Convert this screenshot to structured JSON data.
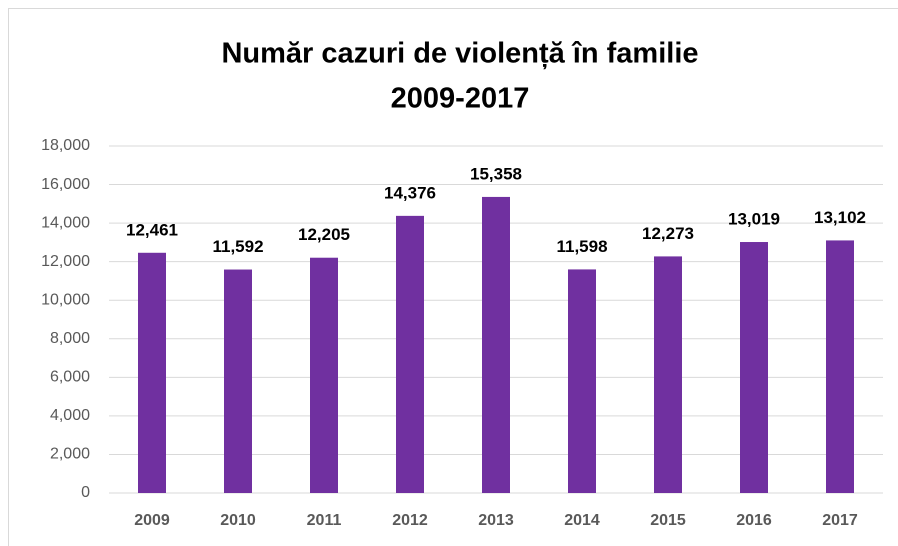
{
  "chart_data": {
    "type": "bar",
    "title": "Număr cazuri de violență în familie",
    "subtitle": "2009-2017",
    "categories": [
      "2009",
      "2010",
      "2011",
      "2012",
      "2013",
      "2014",
      "2015",
      "2016",
      "2017"
    ],
    "values": [
      12461,
      11592,
      12205,
      14376,
      15358,
      11598,
      12273,
      13019,
      13102
    ],
    "value_labels": [
      "12,461",
      "11,592",
      "12,205",
      "14,376",
      "15,358",
      "11,598",
      "12,273",
      "13,019",
      "13,102"
    ],
    "color": "#7030a0",
    "ylim": [
      0,
      18000
    ],
    "yticks": [
      0,
      {
        "value": 2000,
        "label": "2,000"
      },
      {
        "value": 4000,
        "label": "4,000"
      },
      {
        "value": 6000,
        "label": "6,000"
      },
      {
        "value": 8000,
        "label": "8,000"
      },
      {
        "value": 10000,
        "label": "10,000"
      },
      {
        "value": 12000,
        "label": "12,000"
      },
      {
        "value": 14000,
        "label": "14,000"
      },
      {
        "value": 16000,
        "label": "16,000"
      },
      {
        "value": 18000,
        "label": "18,000"
      }
    ],
    "grid": true
  }
}
